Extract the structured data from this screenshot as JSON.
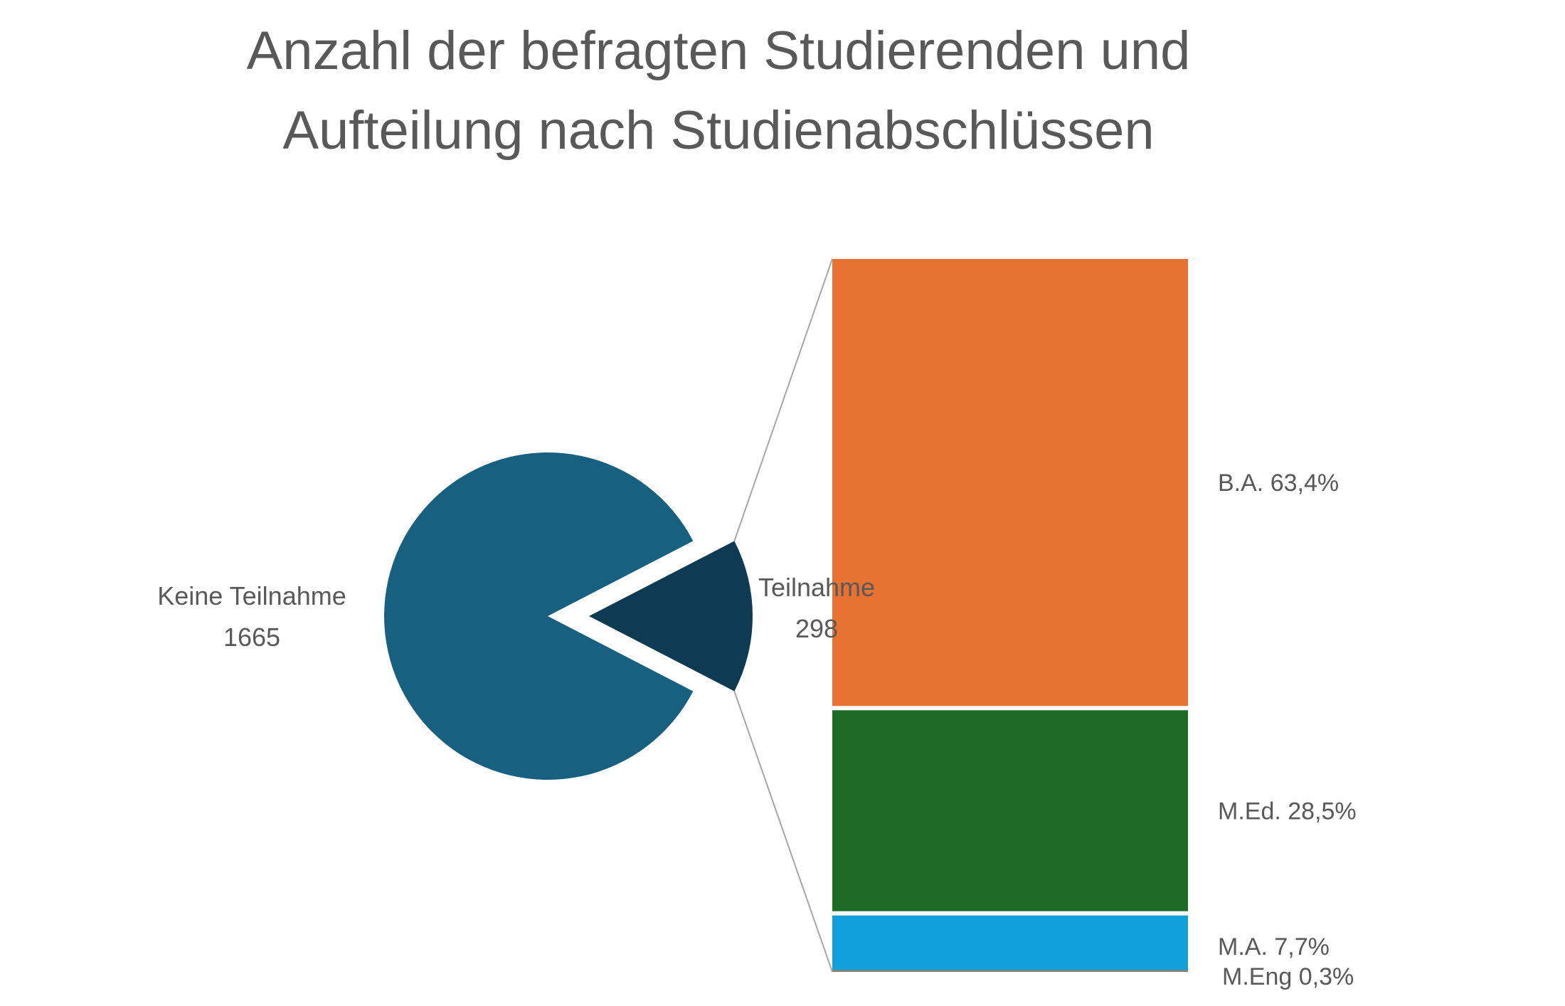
{
  "chart_data": {
    "type": "pie",
    "subtype": "bar-of-pie",
    "title_line1": "Anzahl der befragten Studierenden und",
    "title_line2": "Aufteilung nach Studienabschlüssen",
    "pie": {
      "slices": [
        {
          "label": "Keine Teilnahme",
          "value": 1665,
          "color": "#17607f"
        },
        {
          "label": "Teilnahme",
          "value": 298,
          "color": "#0e3a52"
        }
      ]
    },
    "bar": {
      "source_slice": "Teilnahme",
      "segments": [
        {
          "label": "B.A.",
          "percent": 63.4,
          "text": "B.A. 63,4%",
          "color": "#e87232"
        },
        {
          "label": "M.Ed.",
          "percent": 28.5,
          "text": "M.Ed.  28,5%",
          "color": "#1d6b27"
        },
        {
          "label": "M.A.",
          "percent": 7.7,
          "text": "M.A. 7,7%",
          "color": "#12a0db"
        },
        {
          "label": "M.Eng",
          "percent": 0.3,
          "text": "M.Eng 0,3%",
          "color": "#7f7f7f"
        }
      ]
    },
    "connector_color": "#a6a6a6",
    "label_color": "#595959"
  }
}
